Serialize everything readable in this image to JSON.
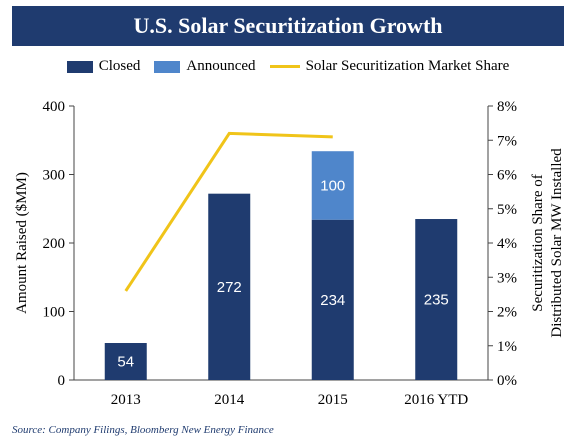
{
  "chart_data": {
    "type": "bar",
    "title": "U.S. Solar Securitization Growth",
    "categories": [
      "2013",
      "2014",
      "2015",
      "2016 YTD"
    ],
    "series": [
      {
        "name": "Closed",
        "values": [
          54,
          272,
          234,
          235
        ],
        "color": "#1f3b6f",
        "axis": "left"
      },
      {
        "name": "Announced",
        "values": [
          0,
          0,
          100,
          0
        ],
        "color": "#4f86cb",
        "axis": "left"
      },
      {
        "name": "Solar Securitization Market Share",
        "type": "line",
        "values": [
          2.6,
          7.2,
          7.1,
          null
        ],
        "color": "#f0c419",
        "axis": "right"
      }
    ],
    "data_labels": [
      {
        "category": "2013",
        "series": "Closed",
        "text": "54"
      },
      {
        "category": "2014",
        "series": "Closed",
        "text": "272"
      },
      {
        "category": "2015",
        "series": "Closed",
        "text": "234"
      },
      {
        "category": "2015",
        "series": "Announced",
        "text": "100"
      },
      {
        "category": "2016 YTD",
        "series": "Closed",
        "text": "235"
      }
    ],
    "ylabel": "Amount Raised ($MM)",
    "ylim": [
      0,
      400
    ],
    "yticks": [
      "0",
      "100",
      "200",
      "300",
      "400"
    ],
    "y2label_line1": "Securitization Share of",
    "y2label_line2": "Distributed Solar MW Installed",
    "y2lim": [
      0,
      8
    ],
    "y2ticks": [
      "0%",
      "1%",
      "2%",
      "3%",
      "4%",
      "5%",
      "6%",
      "7%",
      "8%"
    ],
    "stacked": true,
    "grid": false,
    "legend_position": "top"
  },
  "source": "Source: Company Filings, Bloomberg New Energy Finance"
}
